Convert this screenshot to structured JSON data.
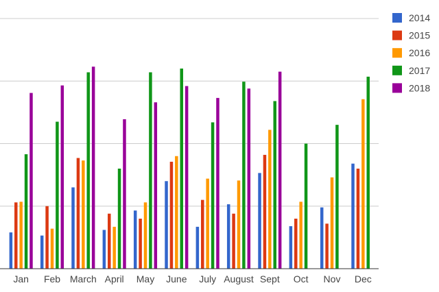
{
  "chart_data": {
    "type": "bar",
    "title": "",
    "xlabel": "",
    "ylabel": "",
    "categories": [
      "Jan",
      "Feb",
      "March",
      "April",
      "May",
      "June",
      "July",
      "August",
      "Sept",
      "Oct",
      "Nov",
      "Dec"
    ],
    "ylim": [
      0,
      4
    ],
    "grid": true,
    "legend_position": "right",
    "series": [
      {
        "name": "2014",
        "color": "#3366cc",
        "values": [
          0.58,
          0.53,
          1.3,
          0.62,
          0.93,
          1.4,
          0.67,
          1.03,
          1.53,
          0.68,
          0.98,
          1.68
        ]
      },
      {
        "name": "2015",
        "color": "#dc3912",
        "values": [
          1.06,
          1.0,
          1.77,
          0.88,
          0.8,
          1.71,
          1.1,
          0.88,
          1.82,
          0.8,
          0.72,
          1.6
        ]
      },
      {
        "name": "2016",
        "color": "#ff9900",
        "values": [
          1.07,
          0.64,
          1.73,
          0.67,
          1.06,
          1.8,
          1.44,
          1.41,
          2.22,
          1.07,
          1.46,
          2.71
        ]
      },
      {
        "name": "2017",
        "color": "#109618",
        "values": [
          1.83,
          2.35,
          3.14,
          1.6,
          3.14,
          3.2,
          2.34,
          2.99,
          2.68,
          2.0,
          2.3,
          3.07
        ]
      },
      {
        "name": "2018",
        "color": "#990099",
        "values": [
          2.81,
          2.93,
          3.23,
          2.39,
          2.66,
          2.92,
          2.73,
          2.88,
          3.15,
          null,
          null,
          null
        ]
      }
    ]
  }
}
